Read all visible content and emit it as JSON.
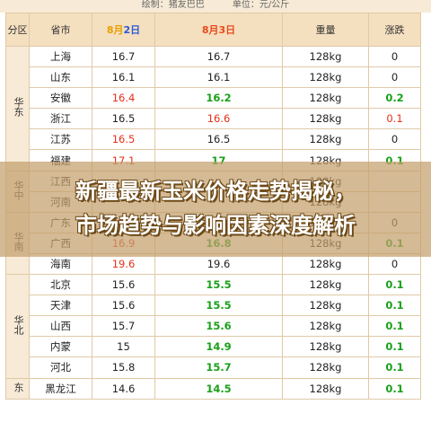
{
  "top_note": {
    "compiler": "绘制：猪友巴巴",
    "unit": "单位：元/公斤"
  },
  "table": {
    "headers": {
      "region": "分区",
      "province": "省市",
      "date1_month": "8月",
      "date1_day": "2日",
      "date2": "8月3日",
      "weight": "重量",
      "change": "涨跌"
    },
    "groups": [
      {
        "region": "华东",
        "rows": [
          {
            "province": "上海",
            "d1": "16.7",
            "d1c": "plain",
            "d2": "16.7",
            "d2c": "plain",
            "weight": "128kg",
            "change": "0",
            "cc": "plain"
          },
          {
            "province": "山东",
            "d1": "16.1",
            "d1c": "plain",
            "d2": "16.1",
            "d2c": "plain",
            "weight": "128kg",
            "change": "0",
            "cc": "plain"
          },
          {
            "province": "安徽",
            "d1": "16.4",
            "d1c": "red",
            "d2": "16.2",
            "d2c": "green",
            "weight": "128kg",
            "change": "0.2",
            "cc": "green"
          },
          {
            "province": "浙江",
            "d1": "16.5",
            "d1c": "plain",
            "d2": "16.6",
            "d2c": "red",
            "weight": "128kg",
            "change": "0.1",
            "cc": "red"
          },
          {
            "province": "江苏",
            "d1": "16.5",
            "d1c": "red",
            "d2": "16.5",
            "d2c": "plain",
            "weight": "128kg",
            "change": "0",
            "cc": "plain"
          },
          {
            "province": "福建",
            "d1": "17.1",
            "d1c": "red",
            "d2": "17",
            "d2c": "green",
            "weight": "128kg",
            "change": "0.1",
            "cc": "green"
          }
        ]
      },
      {
        "region": "华中",
        "rows": [
          {
            "province": "江西",
            "d1": "",
            "d1c": "plain",
            "d2": "",
            "d2c": "plain",
            "weight": "128kg",
            "change": "",
            "cc": "plain"
          },
          {
            "province": "河南",
            "d1": "",
            "d1c": "plain",
            "d2": "",
            "d2c": "plain",
            "weight": "128kg",
            "change": "",
            "cc": "plain"
          }
        ]
      },
      {
        "region": "华南",
        "rows": [
          {
            "province": "广东",
            "d1": "17.4",
            "d1c": "red",
            "d2": "17.4",
            "d2c": "plain",
            "weight": "128kg",
            "change": "0",
            "cc": "plain"
          },
          {
            "province": "广西",
            "d1": "16.9",
            "d1c": "red",
            "d2": "16.8",
            "d2c": "green",
            "weight": "128kg",
            "change": "0.1",
            "cc": "green"
          },
          {
            "province": "海南",
            "d1": "19.6",
            "d1c": "red",
            "d2": "19.6",
            "d2c": "plain",
            "weight": "128kg",
            "change": "0",
            "cc": "plain"
          }
        ]
      },
      {
        "region": "华北",
        "rows": [
          {
            "province": "北京",
            "d1": "15.6",
            "d1c": "plain",
            "d2": "15.5",
            "d2c": "green",
            "weight": "128kg",
            "change": "0.1",
            "cc": "green"
          },
          {
            "province": "天津",
            "d1": "15.6",
            "d1c": "plain",
            "d2": "15.5",
            "d2c": "green",
            "weight": "128kg",
            "change": "0.1",
            "cc": "green"
          },
          {
            "province": "山西",
            "d1": "15.7",
            "d1c": "plain",
            "d2": "15.6",
            "d2c": "green",
            "weight": "128kg",
            "change": "0.1",
            "cc": "green"
          },
          {
            "province": "内蒙",
            "d1": "15",
            "d1c": "plain",
            "d2": "14.9",
            "d2c": "green",
            "weight": "128kg",
            "change": "0.1",
            "cc": "green"
          },
          {
            "province": "河北",
            "d1": "15.8",
            "d1c": "plain",
            "d2": "15.7",
            "d2c": "green",
            "weight": "128kg",
            "change": "0.1",
            "cc": "green"
          }
        ]
      },
      {
        "region": "东",
        "rows": [
          {
            "province": "黑龙江",
            "d1": "14.6",
            "d1c": "plain",
            "d2": "14.5",
            "d2c": "green",
            "weight": "128kg",
            "change": "0.1",
            "cc": "green"
          }
        ]
      }
    ]
  },
  "overlay": {
    "line1": "新疆最新玉米价格走势揭秘，",
    "line2": "市场趋势与影响因素深度解析"
  },
  "colors": {
    "header_bg": "#f4dfbf",
    "region_bg": "#f7ead6",
    "up": "#e8301b",
    "down": "#19a019",
    "overlay": "#c4a06c"
  }
}
